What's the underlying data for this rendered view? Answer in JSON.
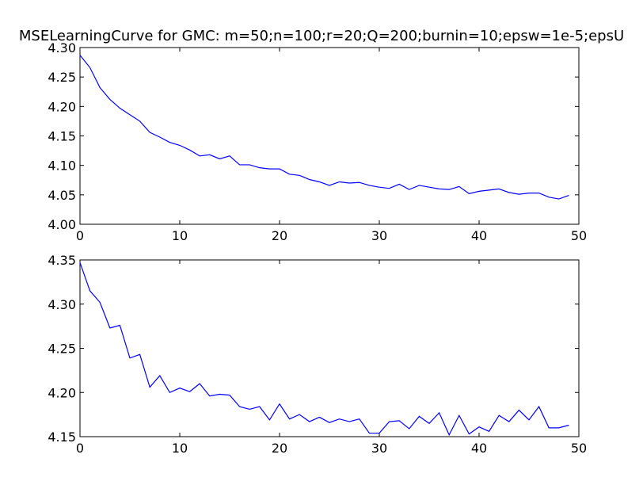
{
  "chart_data": [
    {
      "type": "line",
      "title": "MSELearningCurve for GMC: m=50;n=100;r=20;Q=200;burnin=10;epsw=1e-5;epsU",
      "xlabel": "",
      "ylabel": "",
      "xlim": [
        0,
        50
      ],
      "ylim": [
        4.0,
        4.3
      ],
      "xticks": [
        "0",
        "10",
        "20",
        "30",
        "40",
        "50"
      ],
      "yticks": [
        "4.00",
        "4.05",
        "4.10",
        "4.15",
        "4.20",
        "4.25",
        "4.30"
      ],
      "grid": false,
      "line_color": "#0000ff",
      "series": [
        {
          "x": [
            0,
            1,
            2,
            3,
            4,
            5,
            6,
            7,
            8,
            9,
            10,
            11,
            12,
            13,
            14,
            15,
            16,
            17,
            18,
            19,
            20,
            21,
            22,
            23,
            24,
            25,
            26,
            27,
            28,
            29,
            30,
            31,
            32,
            33,
            34,
            35,
            36,
            37,
            38,
            39,
            40,
            41,
            42,
            43,
            44,
            45,
            46,
            47,
            48,
            49
          ],
          "values": [
            4.287,
            4.266,
            4.232,
            4.212,
            4.197,
            4.186,
            4.175,
            4.156,
            4.148,
            4.139,
            4.134,
            4.126,
            4.116,
            4.118,
            4.111,
            4.116,
            4.101,
            4.101,
            4.096,
            4.094,
            4.094,
            4.085,
            4.083,
            4.076,
            4.072,
            4.066,
            4.072,
            4.07,
            4.071,
            4.066,
            4.063,
            4.061,
            4.068,
            4.059,
            4.066,
            4.063,
            4.06,
            4.059,
            4.064,
            4.052,
            4.056,
            4.058,
            4.06,
            4.054,
            4.051,
            4.053,
            4.053,
            4.046,
            4.043,
            4.049
          ]
        }
      ]
    },
    {
      "type": "line",
      "title": "",
      "xlabel": "",
      "ylabel": "",
      "xlim": [
        0,
        50
      ],
      "ylim": [
        4.15,
        4.35
      ],
      "xticks": [
        "0",
        "10",
        "20",
        "30",
        "40",
        "50"
      ],
      "yticks": [
        "4.15",
        "4.20",
        "4.25",
        "4.30",
        "4.35"
      ],
      "grid": false,
      "line_color": "#0000ff",
      "series": [
        {
          "x": [
            0,
            1,
            2,
            3,
            4,
            5,
            6,
            7,
            8,
            9,
            10,
            11,
            12,
            13,
            14,
            15,
            16,
            17,
            18,
            19,
            20,
            21,
            22,
            23,
            24,
            25,
            26,
            27,
            28,
            29,
            30,
            31,
            32,
            33,
            34,
            35,
            36,
            37,
            38,
            39,
            40,
            41,
            42,
            43,
            44,
            45,
            46,
            47,
            48,
            49
          ],
          "values": [
            4.347,
            4.315,
            4.302,
            4.273,
            4.276,
            4.239,
            4.243,
            4.206,
            4.219,
            4.2,
            4.205,
            4.201,
            4.21,
            4.196,
            4.198,
            4.197,
            4.184,
            4.181,
            4.184,
            4.169,
            4.187,
            4.17,
            4.175,
            4.167,
            4.172,
            4.166,
            4.17,
            4.167,
            4.17,
            4.154,
            4.154,
            4.167,
            4.168,
            4.159,
            4.173,
            4.165,
            4.177,
            4.152,
            4.174,
            4.153,
            4.161,
            4.156,
            4.174,
            4.167,
            4.18,
            4.169,
            4.184,
            4.16,
            4.16,
            4.163
          ]
        }
      ]
    }
  ]
}
